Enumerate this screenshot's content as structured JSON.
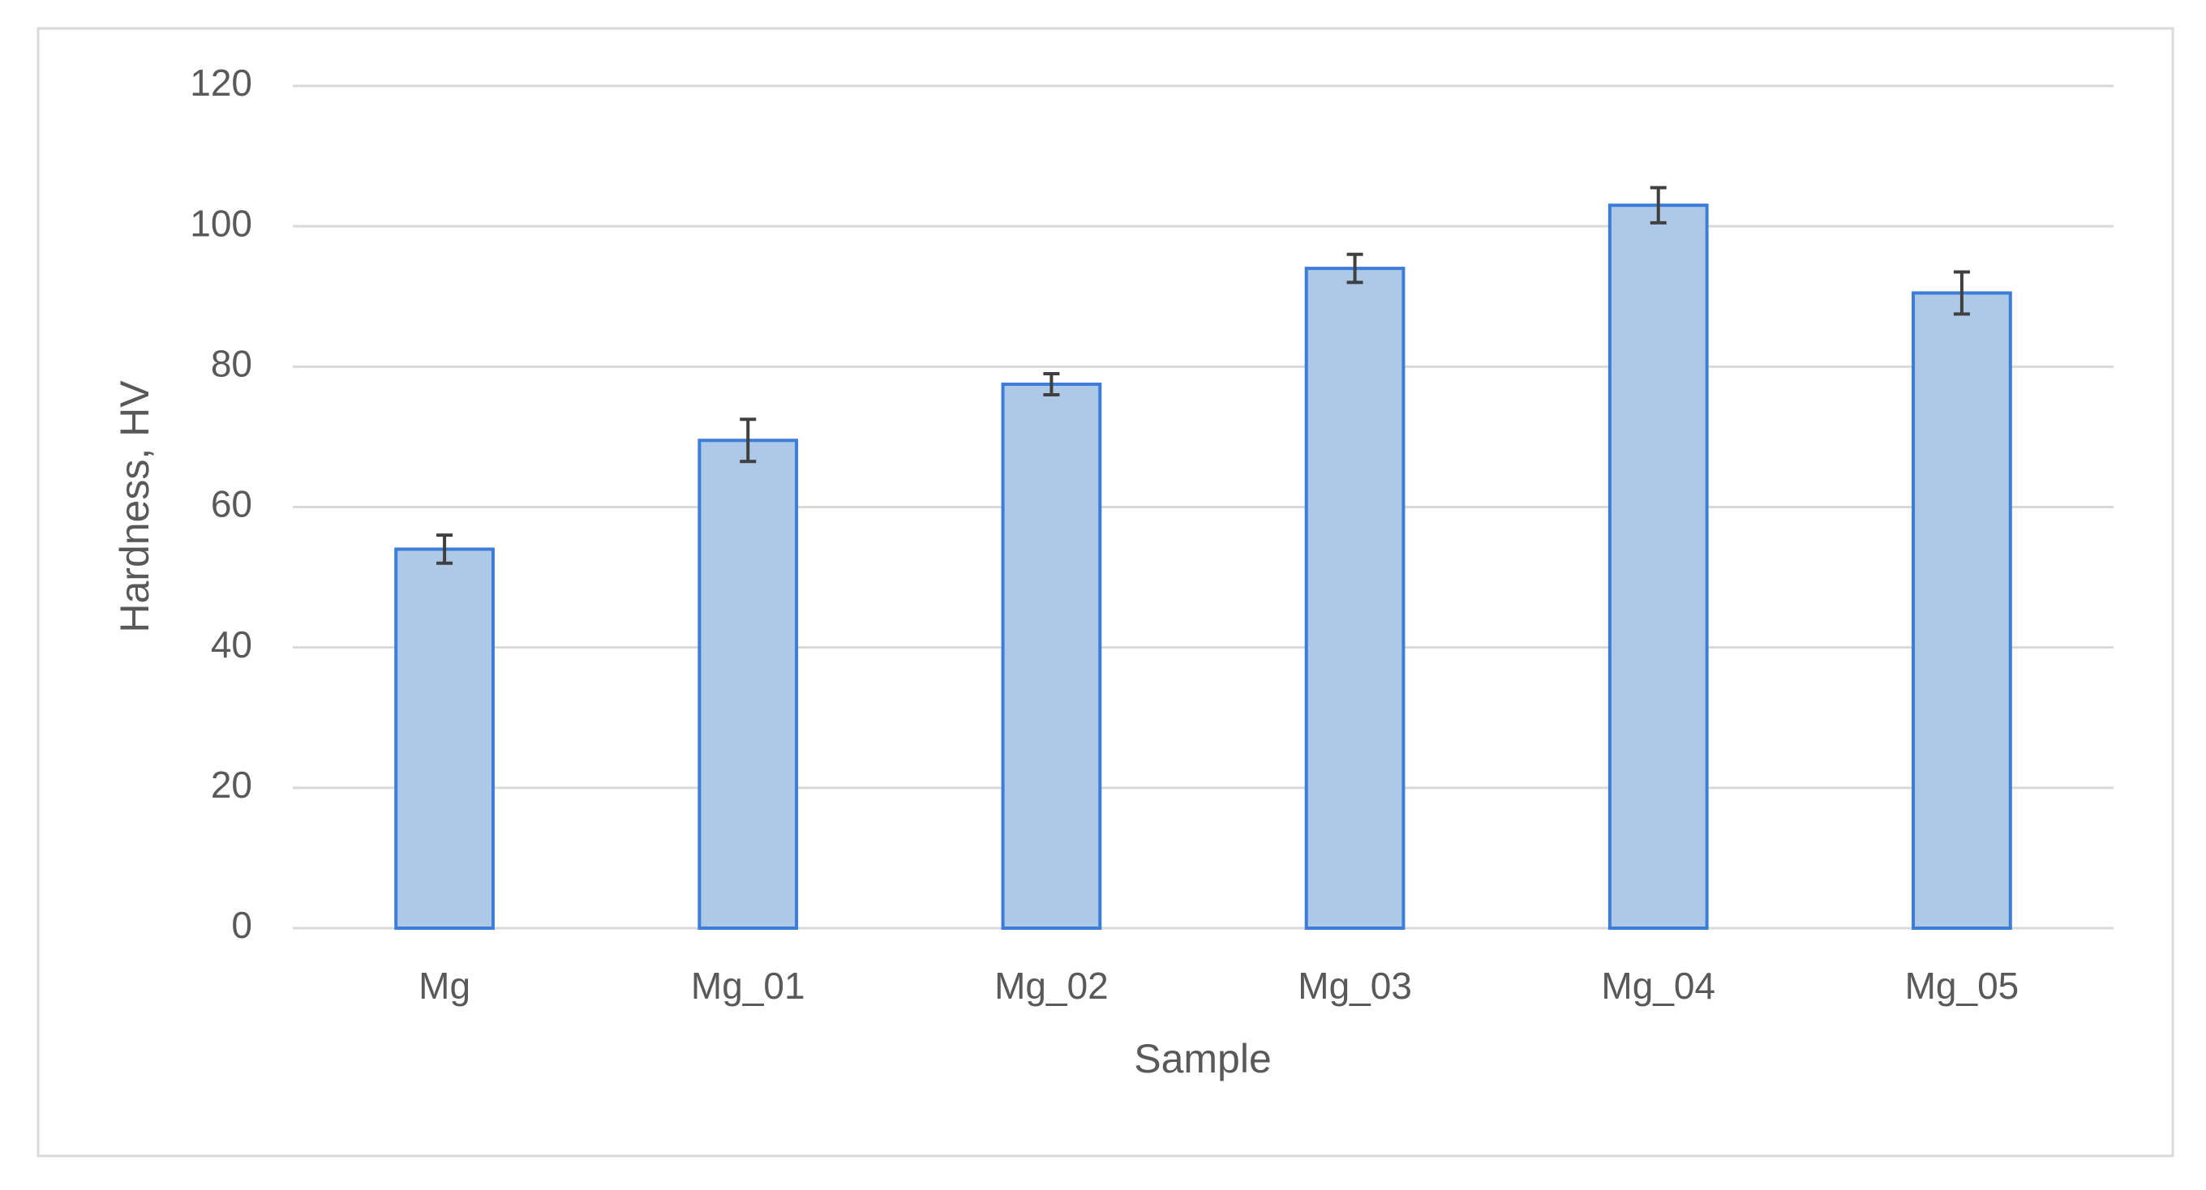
{
  "chart_data": {
    "type": "bar",
    "x_label": "Sample",
    "y_label": "Hardness, HV",
    "categories": [
      "Mg",
      "Mg_01",
      "Mg_02",
      "Mg_03",
      "Mg_04",
      "Mg_05"
    ],
    "values": [
      54,
      69.5,
      77.5,
      94,
      103,
      90.5
    ],
    "errors": [
      2,
      3,
      1.5,
      2,
      2.5,
      3
    ],
    "color": "#aec8e8",
    "edge_color": "#3b7dd8",
    "ylim": [
      0,
      120
    ],
    "yticks": [
      0,
      20,
      40,
      60,
      80,
      100,
      120
    ],
    "grid": true
  }
}
